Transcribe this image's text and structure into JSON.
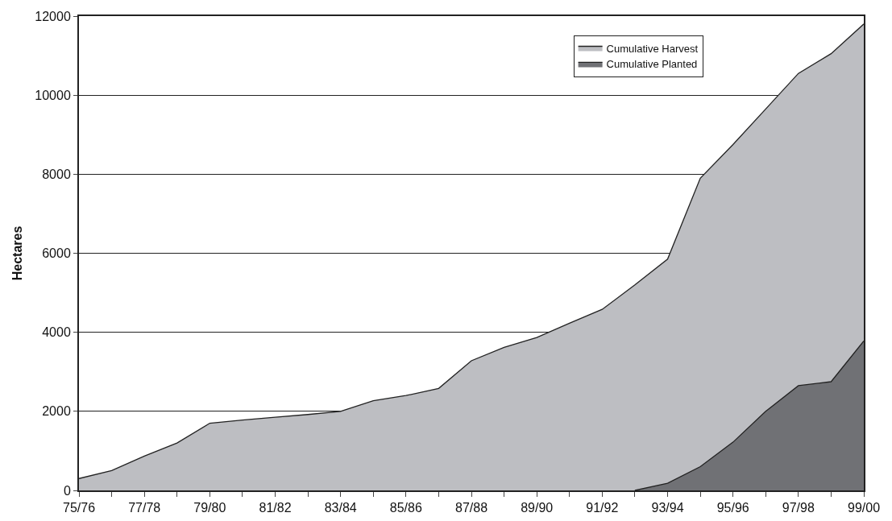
{
  "chart_data": {
    "type": "area",
    "ylabel": "Hectares",
    "categories": [
      "75/76",
      null,
      "77/78",
      null,
      "79/80",
      null,
      "81/82",
      null,
      "83/84",
      null,
      "85/86",
      null,
      "87/88",
      null,
      "89/90",
      null,
      "91/92",
      null,
      "93/94",
      null,
      "95/96",
      null,
      "97/98",
      null,
      "99/00"
    ],
    "series": [
      {
        "name": "Cumulative Harvest",
        "color": "#bdbec2",
        "values": [
          300,
          500,
          870,
          1200,
          1700,
          1780,
          1850,
          1920,
          2000,
          2270,
          2400,
          2580,
          3280,
          3620,
          3870,
          4230,
          4580,
          5200,
          5850,
          7900,
          8750,
          9650,
          10550,
          11050,
          11800
        ]
      },
      {
        "name": "Cumulative Planted",
        "color": "#707175",
        "values": [
          null,
          null,
          null,
          null,
          null,
          null,
          null,
          null,
          null,
          null,
          null,
          null,
          null,
          null,
          null,
          null,
          null,
          0,
          180,
          600,
          1220,
          2000,
          2650,
          2750,
          3780
        ]
      }
    ],
    "ylim": [
      0,
      12000
    ],
    "yticks": [
      0,
      2000,
      4000,
      6000,
      8000,
      10000,
      12000
    ],
    "grid": "y",
    "legend": "top right"
  }
}
